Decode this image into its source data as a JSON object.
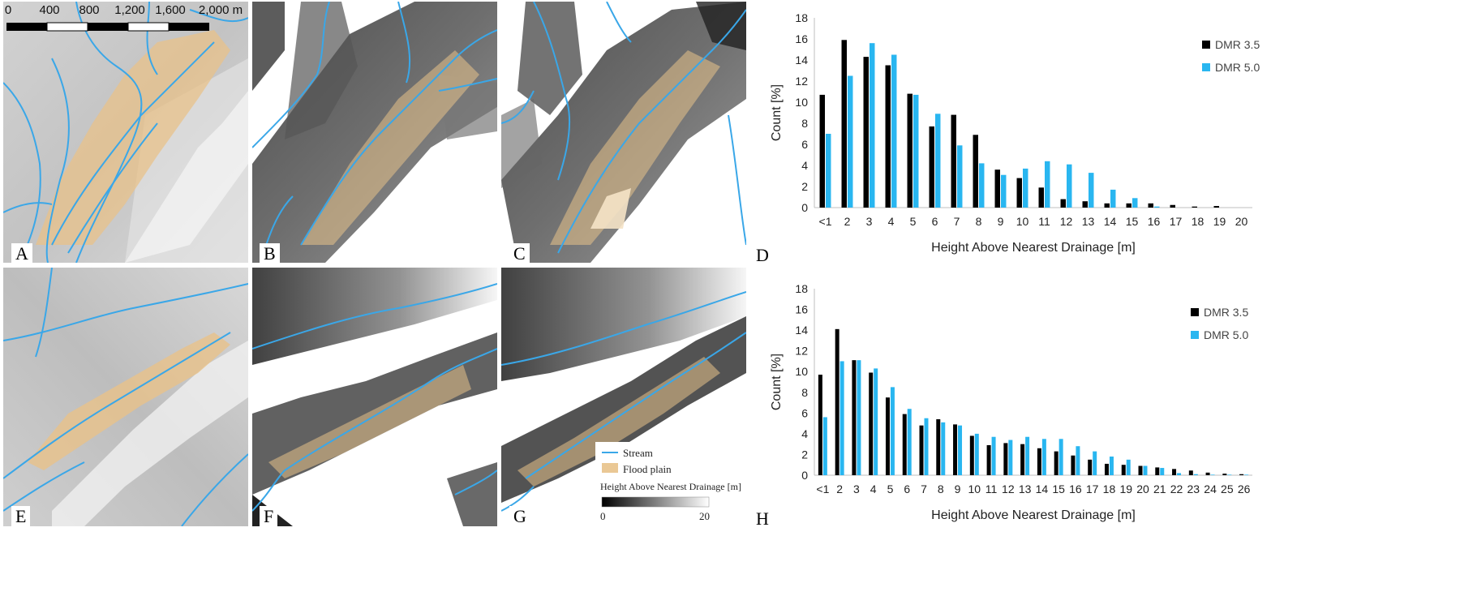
{
  "panel_labels": [
    "A",
    "B",
    "C",
    "D",
    "E",
    "F",
    "G",
    "H"
  ],
  "scale": {
    "labels": [
      "0",
      "400",
      "800",
      "1,200",
      "1,600",
      "2,000 m"
    ]
  },
  "map_legend": {
    "stream": "Stream",
    "flood_plain": "Flood plain",
    "ramp_title": "Height Above Nearest Drainage [m]",
    "ramp_min": "0",
    "ramp_max": "20"
  },
  "colors": {
    "stream": "#3aa7e8",
    "flood_plain": "#e8c28a",
    "dmr35": "#000000",
    "dmr50": "#29b6f0"
  },
  "chart_data": [
    {
      "type": "bar",
      "panel": "D",
      "categories": [
        "<1",
        "2",
        "3",
        "4",
        "5",
        "6",
        "7",
        "8",
        "9",
        "10",
        "11",
        "12",
        "13",
        "14",
        "15",
        "16",
        "17",
        "18",
        "19",
        "20"
      ],
      "series": [
        {
          "name": "DMR 3.5",
          "values": [
            10.7,
            15.9,
            14.3,
            13.5,
            10.8,
            7.7,
            8.8,
            6.9,
            3.6,
            2.8,
            1.9,
            0.8,
            0.6,
            0.4,
            0.4,
            0.4,
            0.25,
            0.1,
            0.15,
            0.0
          ]
        },
        {
          "name": "DMR 5.0",
          "values": [
            7.0,
            12.5,
            15.6,
            14.5,
            10.7,
            8.9,
            5.9,
            4.2,
            3.1,
            3.7,
            4.4,
            4.1,
            3.3,
            1.7,
            0.9,
            0.1,
            0.0,
            0.0,
            0.0,
            0.0
          ]
        }
      ],
      "xlabel": "Height Above Nearest Drainage [m]",
      "ylabel": "Count [%]",
      "ylim": [
        0,
        18
      ],
      "yticks": [
        "0",
        "2",
        "4",
        "6",
        "8",
        "10",
        "12",
        "14",
        "16",
        "18"
      ],
      "legend_position": "top-right",
      "grid": false
    },
    {
      "type": "bar",
      "panel": "H",
      "categories": [
        "<1",
        "2",
        "3",
        "4",
        "5",
        "6",
        "7",
        "8",
        "9",
        "10",
        "11",
        "12",
        "13",
        "14",
        "15",
        "16",
        "17",
        "18",
        "19",
        "20",
        "21",
        "22",
        "23",
        "24",
        "25",
        "26"
      ],
      "series": [
        {
          "name": "DMR 3.5",
          "values": [
            9.7,
            14.1,
            11.1,
            9.9,
            7.5,
            5.9,
            4.8,
            5.4,
            4.9,
            3.8,
            2.9,
            3.1,
            3.0,
            2.6,
            2.3,
            1.9,
            1.5,
            1.1,
            1.0,
            0.9,
            0.75,
            0.6,
            0.45,
            0.25,
            0.15,
            0.1
          ]
        },
        {
          "name": "DMR 5.0",
          "values": [
            5.6,
            11.0,
            11.1,
            10.3,
            8.5,
            6.4,
            5.5,
            5.1,
            4.8,
            4.0,
            3.7,
            3.4,
            3.7,
            3.5,
            3.5,
            2.8,
            2.3,
            1.8,
            1.5,
            0.9,
            0.7,
            0.2,
            0.1,
            0.05,
            0.05,
            0.05
          ]
        }
      ],
      "xlabel": "Height Above Nearest Drainage [m]",
      "ylabel": "Count [%]",
      "ylim": [
        0,
        18
      ],
      "yticks": [
        "0",
        "2",
        "4",
        "6",
        "8",
        "10",
        "12",
        "14",
        "16",
        "18"
      ],
      "legend_position": "top-right",
      "grid": false
    }
  ]
}
